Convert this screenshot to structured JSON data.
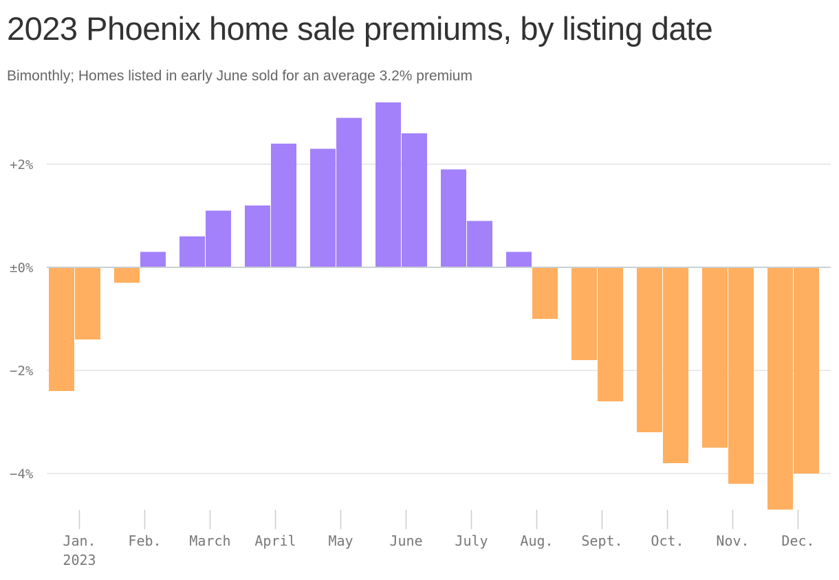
{
  "chart_data": {
    "type": "bar",
    "title": "2023 Phoenix home sale premiums, by listing date",
    "subtitle": "Bimonthly; Homes listed in early June sold for an average 3.2% premium",
    "ylabel": "",
    "xlabel": "",
    "ylim": [
      -5,
      3.2
    ],
    "y_ticks": [
      {
        "value": 2,
        "label": "+2%"
      },
      {
        "value": 0,
        "label": "±0%"
      },
      {
        "value": -2,
        "label": "−2%"
      },
      {
        "value": -4,
        "label": "−4%"
      }
    ],
    "months": [
      "Jan.",
      "Feb.",
      "March",
      "April",
      "May",
      "June",
      "July",
      "Aug.",
      "Sept.",
      "Oct.",
      "Nov.",
      "Dec."
    ],
    "year_label": "2023",
    "values": [
      -2.4,
      -1.4,
      -0.3,
      0.3,
      0.6,
      1.1,
      1.2,
      2.4,
      2.3,
      2.9,
      3.2,
      2.6,
      1.9,
      0.9,
      0.3,
      -1.0,
      -1.8,
      -2.6,
      -3.2,
      -3.8,
      -3.5,
      -4.2,
      -4.7,
      -4.0
    ],
    "positive_color": "#a381fb",
    "negative_color": "#ffaf5f",
    "grid": true
  }
}
